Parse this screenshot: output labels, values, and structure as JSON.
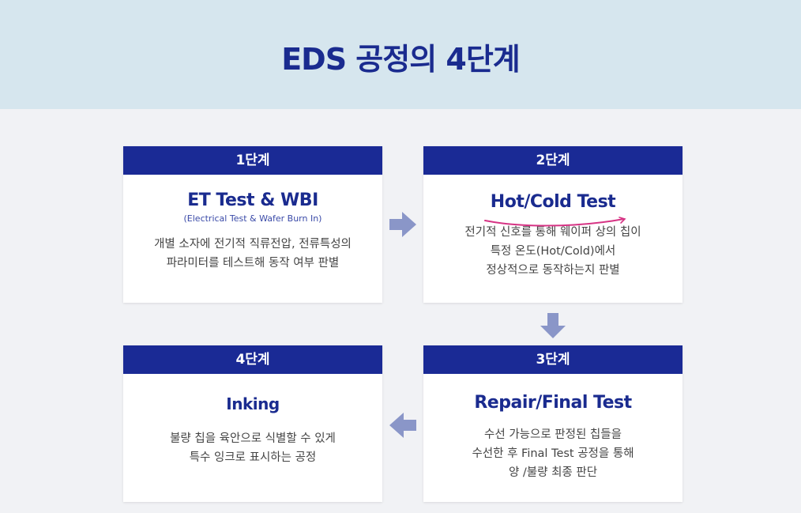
{
  "title": "EDS 공정의 4단계",
  "steps": [
    {
      "label": "1단계",
      "title": "ET Test & WBI",
      "subtitle": "(Electrical Test & Wafer Burn In)",
      "description": "개별 소자에 전기적 직류전압, 전류특성의\n파라미터를 테스트해 동작 여부 판별"
    },
    {
      "label": "2단계",
      "title": "Hot/Cold Test",
      "description": "전기적 신호를 통해 웨이퍼 상의 칩이\n특정 온도(Hot/Cold)에서\n정상적으로 동작하는지 판별"
    },
    {
      "label": "3단계",
      "title": "Repair/Final Test",
      "description": "수선 가능으로 판정된 칩들을\n수선한 후 Final Test 공정을 통해\n양 /불량 최종 판단"
    },
    {
      "label": "4단계",
      "title": "Inking",
      "description": "불량 칩을 육안으로 식별할 수 있게\n특수 잉크로 표시하는 공정"
    }
  ],
  "colors": {
    "header_bg": "#d6e6ee",
    "title": "#1a2b8f",
    "step_header": "#1a2a95",
    "arrow": "#8a96c8",
    "annotation": "#d63384"
  }
}
